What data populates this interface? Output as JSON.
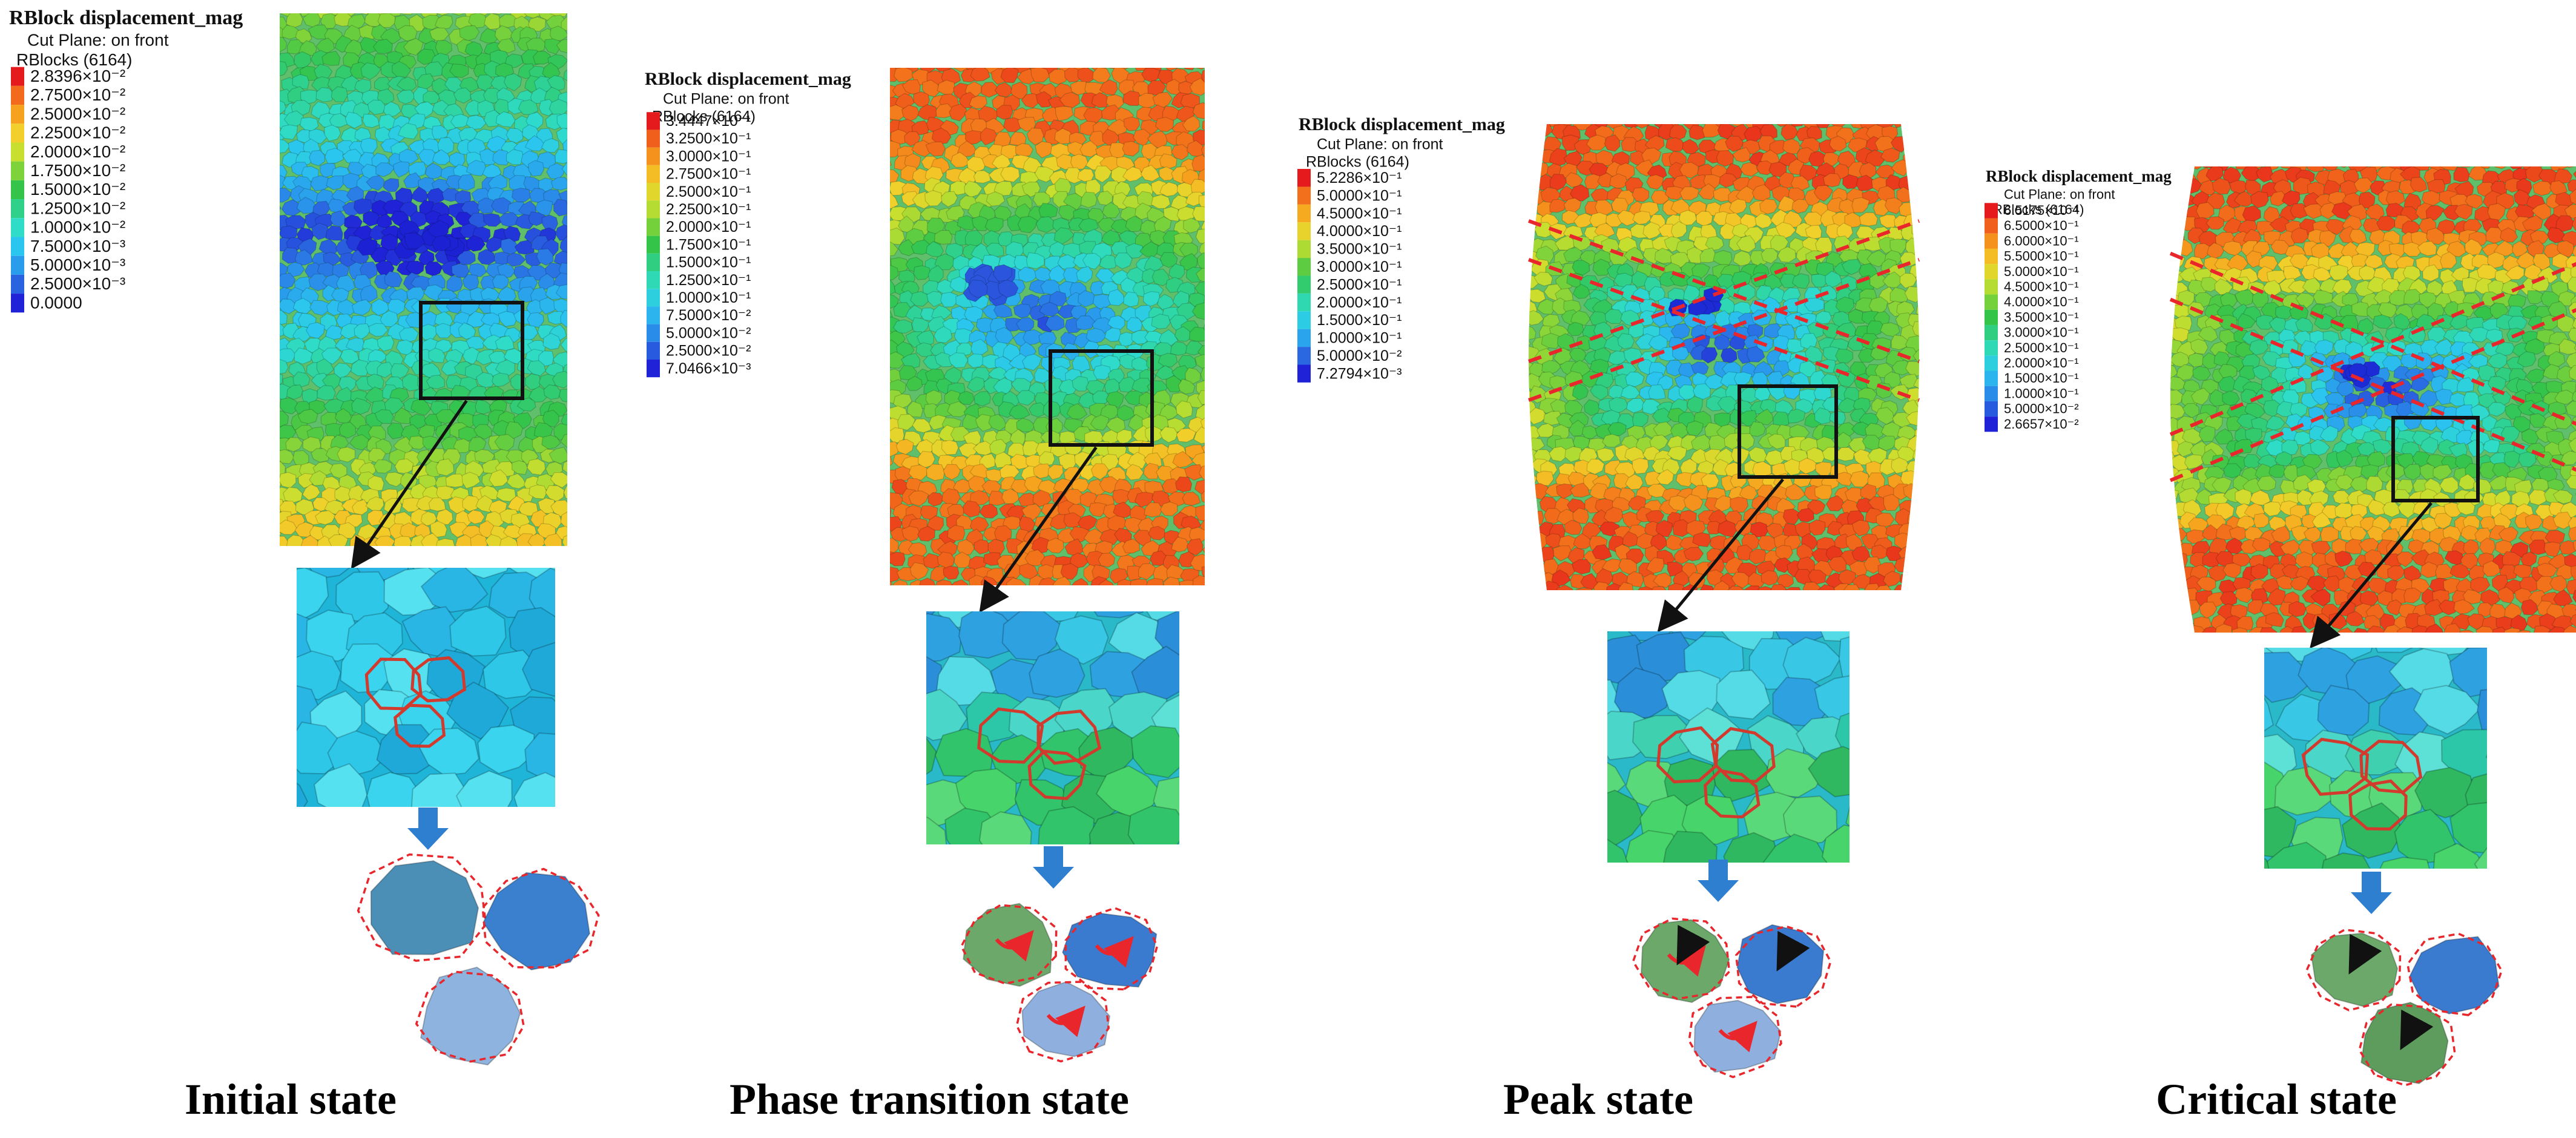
{
  "panels": [
    {
      "id": "initial",
      "caption": "Initial state",
      "legend": {
        "title": "RBlock displacement_mag",
        "cut_plane": "Cut Plane: on front",
        "rblocks": "RBlocks (6164)",
        "values": [
          "2.8396×10⁻²",
          "2.7500×10⁻²",
          "2.5000×10⁻²",
          "2.2500×10⁻²",
          "2.0000×10⁻²",
          "1.7500×10⁻²",
          "1.5000×10⁻²",
          "1.2500×10⁻²",
          "1.0000×10⁻²",
          "7.5000×10⁻³",
          "5.0000×10⁻³",
          "2.5000×10⁻³",
          "0.0000"
        ]
      },
      "shear_bands": false,
      "particle_arrows": "none"
    },
    {
      "id": "phase",
      "caption": "Phase transition state",
      "legend": {
        "title": "RBlock displacement_mag",
        "cut_plane": "Cut Plane: on front",
        "rblocks": "RBlocks (6164)",
        "values": [
          "3.4447×10⁻¹",
          "3.2500×10⁻¹",
          "3.0000×10⁻¹",
          "2.7500×10⁻¹",
          "2.5000×10⁻¹",
          "2.2500×10⁻¹",
          "2.0000×10⁻¹",
          "1.7500×10⁻¹",
          "1.5000×10⁻¹",
          "1.2500×10⁻¹",
          "1.0000×10⁻¹",
          "7.5000×10⁻²",
          "5.0000×10⁻²",
          "2.5000×10⁻²",
          "7.0466×10⁻³"
        ]
      },
      "shear_bands": false,
      "particle_arrows": "rotation"
    },
    {
      "id": "peak",
      "caption": "Peak state",
      "legend": {
        "title": "RBlock displacement_mag",
        "cut_plane": "Cut Plane: on front",
        "rblocks": "RBlocks (6164)",
        "values": [
          "5.2286×10⁻¹",
          "5.0000×10⁻¹",
          "4.5000×10⁻¹",
          "4.0000×10⁻¹",
          "3.5000×10⁻¹",
          "3.0000×10⁻¹",
          "2.5000×10⁻¹",
          "2.0000×10⁻¹",
          "1.5000×10⁻¹",
          "1.0000×10⁻¹",
          "5.0000×10⁻²",
          "7.2794×10⁻³"
        ]
      },
      "shear_bands": true,
      "particle_arrows": "rotation-slide"
    },
    {
      "id": "critical",
      "caption": "Critical state",
      "legend": {
        "title": "RBlock displacement_mag",
        "cut_plane": "Cut Plane: on front",
        "rblocks": "RBlocks (6164)",
        "values": [
          "6.5175×10⁻¹",
          "6.5000×10⁻¹",
          "6.0000×10⁻¹",
          "5.5000×10⁻¹",
          "5.0000×10⁻¹",
          "4.5000×10⁻¹",
          "4.0000×10⁻¹",
          "3.5000×10⁻¹",
          "3.0000×10⁻¹",
          "2.5000×10⁻¹",
          "2.0000×10⁻¹",
          "1.5000×10⁻¹",
          "1.0000×10⁻¹",
          "5.0000×10⁻²",
          "2.6657×10⁻²"
        ]
      },
      "shear_bands": true,
      "particle_arrows": "slide"
    }
  ],
  "colors": {
    "ramp": [
      "#e41a1c",
      "#f26a1b",
      "#f6a21e",
      "#f2cf2a",
      "#c9df2f",
      "#7fd33a",
      "#35c44a",
      "#2fd08a",
      "#2fdcc8",
      "#2bc6ef",
      "#2a9cec",
      "#2a63e0",
      "#1f22d6"
    ],
    "shear_band": "#e8262b",
    "outline": "#d23a2e",
    "frame": "#111111",
    "flow_arrow": "#2f7fd0"
  }
}
